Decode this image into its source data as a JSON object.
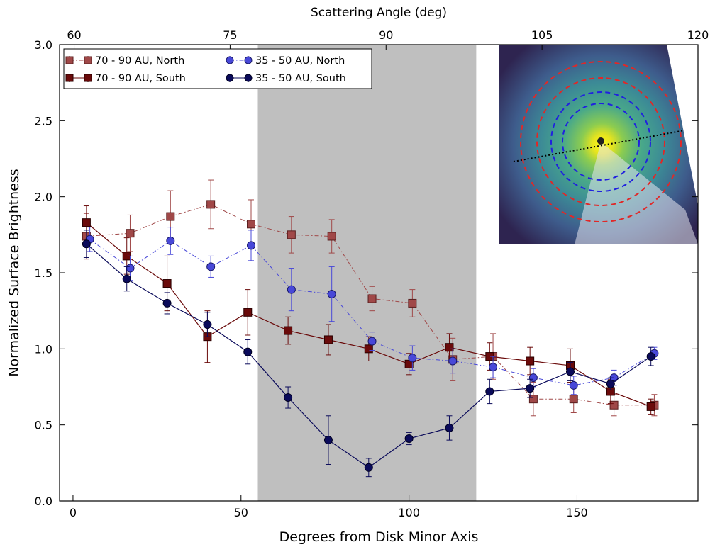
{
  "chart_data": {
    "type": "scatter",
    "title": "",
    "xlabel": "Degrees from Disk Minor Axis",
    "ylabel": "Normalized Surface Brightness",
    "top_xlabel": "Scattering Angle (deg)",
    "xlim": [
      -4,
      186
    ],
    "ylim": [
      0.0,
      3.0
    ],
    "xticks": [
      0,
      50,
      100,
      150
    ],
    "yticks": [
      0.0,
      0.5,
      1.0,
      1.5,
      2.0,
      2.5,
      3.0
    ],
    "ytick_labels": [
      "0.0",
      "0.5",
      "1.0",
      "1.5",
      "2.0",
      "2.5",
      "3.0"
    ],
    "top_xticks": [
      60,
      75,
      90,
      105,
      120
    ],
    "top_xlim": [
      58.6,
      120
    ],
    "grid": false,
    "legend_position": "top-left",
    "shaded_region": {
      "x": [
        55,
        120
      ],
      "color": "#bfbfbf"
    },
    "inset_image": {
      "description_hidden": true,
      "colors": {
        "ring_outer": "#e02828",
        "ring_inner": "#2020e0",
        "axis_line": "#000000"
      }
    },
    "series": [
      {
        "name": "70 - 90 AU, North",
        "marker": "square",
        "color": "#a04848",
        "edge": "#5a1f1f",
        "linestyle": "dashdot",
        "x": [
          4,
          17,
          29,
          41,
          53,
          65,
          77,
          89,
          101,
          113,
          125,
          137,
          149,
          161,
          173
        ],
        "y": [
          1.74,
          1.76,
          1.87,
          1.95,
          1.82,
          1.75,
          1.74,
          1.33,
          1.3,
          0.93,
          0.95,
          0.67,
          0.67,
          0.63,
          0.63
        ],
        "err": [
          0.15,
          0.12,
          0.17,
          0.16,
          0.16,
          0.12,
          0.11,
          0.08,
          0.09,
          0.14,
          0.15,
          0.11,
          0.09,
          0.07,
          0.07
        ]
      },
      {
        "name": "70 - 90 AU, South",
        "marker": "square",
        "color": "#6a0a0a",
        "edge": "#2a0000",
        "linestyle": "solid",
        "x": [
          4,
          16,
          28,
          40,
          52,
          64,
          76,
          88,
          100,
          112,
          124,
          136,
          148,
          160,
          172
        ],
        "y": [
          1.83,
          1.61,
          1.43,
          1.08,
          1.24,
          1.12,
          1.06,
          1.0,
          0.9,
          1.01,
          0.95,
          0.92,
          0.89,
          0.72,
          0.62
        ],
        "err": [
          0.11,
          0.12,
          0.18,
          0.17,
          0.15,
          0.09,
          0.1,
          0.08,
          0.07,
          0.09,
          0.09,
          0.09,
          0.11,
          0.08,
          0.05
        ]
      },
      {
        "name": "35 - 50 AU, North",
        "marker": "circle",
        "color": "#4848d8",
        "edge": "#1a1a6a",
        "linestyle": "dashdot",
        "x": [
          5,
          17,
          29,
          41,
          53,
          65,
          77,
          89,
          101,
          113,
          125,
          137,
          149,
          161,
          173
        ],
        "y": [
          1.72,
          1.53,
          1.71,
          1.54,
          1.68,
          1.39,
          1.36,
          1.05,
          0.94,
          0.92,
          0.88,
          0.81,
          0.76,
          0.81,
          0.97
        ],
        "err": [
          0.08,
          0.08,
          0.09,
          0.07,
          0.1,
          0.14,
          0.18,
          0.06,
          0.08,
          0.08,
          0.07,
          0.06,
          0.06,
          0.05,
          0.04
        ]
      },
      {
        "name": "35 - 50 AU, South",
        "marker": "circle",
        "color": "#0a0a5a",
        "edge": "#000022",
        "linestyle": "solid",
        "x": [
          4,
          16,
          28,
          40,
          52,
          64,
          76,
          88,
          100,
          112,
          124,
          136,
          148,
          160,
          172
        ],
        "y": [
          1.69,
          1.46,
          1.3,
          1.16,
          0.98,
          0.68,
          0.4,
          0.22,
          0.41,
          0.48,
          0.72,
          0.74,
          0.85,
          0.77,
          0.95
        ],
        "err": [
          0.09,
          0.08,
          0.07,
          0.08,
          0.08,
          0.07,
          0.16,
          0.06,
          0.04,
          0.08,
          0.08,
          0.06,
          0.06,
          0.04,
          0.06
        ]
      }
    ]
  }
}
